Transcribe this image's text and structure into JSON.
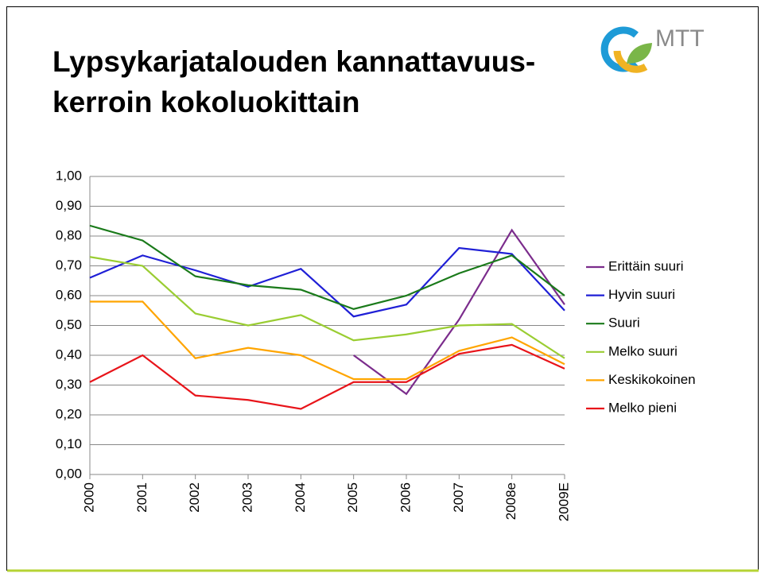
{
  "logo": "MTT",
  "chart_data": {
    "type": "line",
    "title": [
      "Lypsykarjatalouden kannattavuus-",
      "kerroin kokoluokittain"
    ],
    "categories": [
      "2000",
      "2001",
      "2002",
      "2003",
      "2004",
      "2005",
      "2006",
      "2007",
      "2008e",
      "2009E"
    ],
    "series": [
      {
        "name": "Erittäin suuri",
        "color": "#7b2c8c",
        "values": [
          null,
          null,
          null,
          null,
          null,
          0.4,
          0.27,
          0.52,
          0.82,
          0.57
        ]
      },
      {
        "name": "Hyvin suuri",
        "color": "#1f1fd6",
        "values": [
          0.66,
          0.735,
          0.685,
          0.63,
          0.69,
          0.53,
          0.57,
          0.76,
          0.74,
          0.55
        ]
      },
      {
        "name": "Suuri",
        "color": "#1a7a1a",
        "values": [
          0.835,
          0.785,
          0.665,
          0.635,
          0.62,
          0.555,
          0.6,
          0.675,
          0.735,
          0.6
        ]
      },
      {
        "name": "Melko suuri",
        "color": "#9acd32",
        "values": [
          0.73,
          0.7,
          0.54,
          0.5,
          0.535,
          0.45,
          0.47,
          0.5,
          0.505,
          0.39
        ]
      },
      {
        "name": "Keskikokoinen",
        "color": "#ffa500",
        "values": [
          0.58,
          0.58,
          0.39,
          0.425,
          0.4,
          0.32,
          0.32,
          0.415,
          0.46,
          0.37
        ]
      },
      {
        "name": "Melko pieni",
        "color": "#e8141a",
        "values": [
          0.31,
          0.4,
          0.265,
          0.25,
          0.22,
          0.31,
          0.31,
          0.405,
          0.435,
          0.355
        ]
      }
    ],
    "ylim": [
      0,
      1
    ],
    "yticks": [
      {
        "value": 0,
        "label": "0,00"
      },
      {
        "value": 0.1,
        "label": "0,10"
      },
      {
        "value": 0.2,
        "label": "0,20"
      },
      {
        "value": 0.3,
        "label": "0,30"
      },
      {
        "value": 0.4,
        "label": "0,40"
      },
      {
        "value": 0.5,
        "label": "0,50"
      },
      {
        "value": 0.6,
        "label": "0,60"
      },
      {
        "value": 0.7,
        "label": "0,70"
      },
      {
        "value": 0.8,
        "label": "0,80"
      },
      {
        "value": 0.9,
        "label": "0,90"
      },
      {
        "value": 1,
        "label": "1,00"
      }
    ],
    "grid": true,
    "legend": "right"
  }
}
